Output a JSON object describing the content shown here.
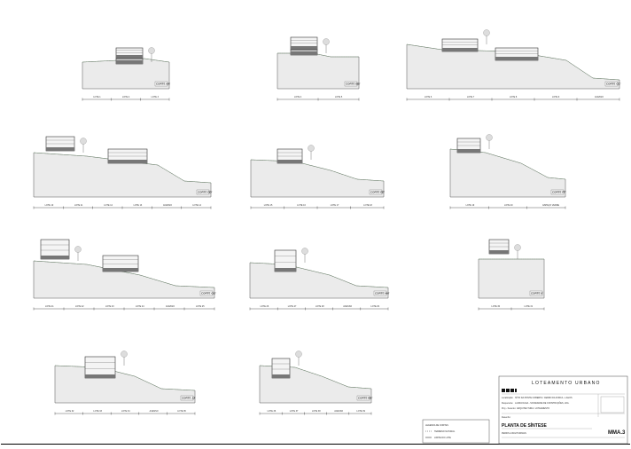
{
  "title_block": {
    "project_title": "LOTEAMENTO URBANO",
    "location_label": "Localização:",
    "location_value": "SÍTIO DA PONTE COBERTA / CERRO DA FORCA - LAGOS",
    "owner_label": "Requerente:",
    "owner_value": "LAURA DAGA - SOCIEDADE DE CONSTRUÇÕES, LDA.",
    "subject_label": "Proj. / Assunto:",
    "subject_value": "ARQUITECTURA / LOTEAMENTO",
    "drawing_label": "Desenho:",
    "drawing_title": "PLANTA DE SÍNTESE",
    "drawing_subtitle": "PERFIS LONGITUDINAIS",
    "sheet_code": "MMA.3"
  },
  "legend": {
    "title": "LEGENDA DE CORTES",
    "items": [
      "TERRENO NATURAL",
      "LIMITE DO LOTE"
    ]
  },
  "profiles": [
    {
      "tag": "CORTE AA'",
      "labels": [
        "LOTE 1",
        "LOTE 2",
        "LOTE 3"
      ]
    },
    {
      "tag": "CORTE BB'",
      "labels": [
        "LOTE 4",
        "LOTE 5"
      ]
    },
    {
      "tag": "CORTE CC'",
      "labels": [
        "LOTE 6",
        "LOTE 7",
        "LOTE 8",
        "LOTE 9",
        "ACESSO"
      ]
    },
    {
      "tag": "CORTE DD'",
      "labels": [
        "LOTE 10",
        "LOTE 11",
        "LOTE 12",
        "LOTE 13",
        "ACESSO",
        "LOTE 14"
      ]
    },
    {
      "tag": "CORTE EE'",
      "labels": [
        "LOTE 15",
        "LOTE 16",
        "LOTE 17",
        "LOTE 18"
      ]
    },
    {
      "tag": "CORTE FF'",
      "labels": [
        "LOTE 19",
        "LOTE 20",
        "ESPAÇO VERDE"
      ]
    },
    {
      "tag": "CORTE GG'",
      "labels": [
        "LOTE 21",
        "LOTE 22",
        "LOTE 23",
        "LOTE 24",
        "ACESSO",
        "LOTE 25"
      ]
    },
    {
      "tag": "CORTE HH'",
      "labels": [
        "LOTE 26",
        "LOTE 27",
        "LOTE 28",
        "ACESSO",
        "LOTE 29"
      ]
    },
    {
      "tag": "CORTE II'",
      "labels": [
        "LOTE 30",
        "LOTE 31"
      ]
    },
    {
      "tag": "CORTE JJ'",
      "labels": [
        "LOTE 32",
        "LOTE 33",
        "LOTE 34",
        "ACESSO",
        "LOTE 35"
      ]
    },
    {
      "tag": "CORTE KK'",
      "labels": [
        "LOTE 36",
        "LOTE 37",
        "LOTE 38",
        "ACESSO",
        "LOTE 39"
      ]
    }
  ]
}
